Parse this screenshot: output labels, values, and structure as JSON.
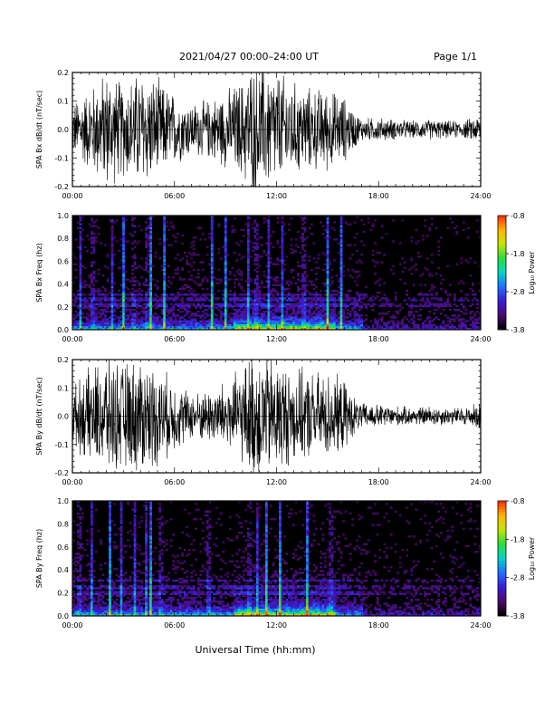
{
  "header": {
    "title": "2021/04/27  00:00–24:00 UT",
    "page": "Page 1/1"
  },
  "footer": {
    "xlabel": "Universal Time (hh:mm)"
  },
  "colors": {
    "trace": "#000000",
    "spectrogram_background": "#000000",
    "colormap": [
      "#000000",
      "#4b0a6e",
      "#3a1bd8",
      "#1f6fff",
      "#00d6c8",
      "#27e03a",
      "#c8e600",
      "#ffb300",
      "#ff2a00"
    ]
  },
  "chart_data": [
    {
      "type": "line",
      "ylabel": "SPA Bx dB/dt (nT/sec)",
      "xlim": [
        0,
        24
      ],
      "ylim": [
        -0.2,
        0.2
      ],
      "x_ticks": [
        "00:00",
        "06:00",
        "12:00",
        "18:00",
        "24:00"
      ],
      "y_ticks": [
        "-0.2",
        "-0.1",
        "0.0",
        "0.1",
        "0.2"
      ],
      "envelope": {
        "hours": [
          0,
          1,
          2,
          3,
          4,
          5,
          6,
          7,
          8,
          9,
          10,
          10.5,
          11,
          12,
          13,
          14,
          15,
          16,
          16.5,
          17,
          18,
          19,
          20,
          21,
          22,
          23,
          24
        ],
        "amplitude": [
          0.09,
          0.14,
          0.2,
          0.16,
          0.2,
          0.17,
          0.12,
          0.09,
          0.1,
          0.13,
          0.17,
          0.22,
          0.22,
          0.2,
          0.16,
          0.14,
          0.14,
          0.11,
          0.07,
          0.04,
          0.04,
          0.035,
          0.03,
          0.035,
          0.03,
          0.03,
          0.05
        ]
      }
    },
    {
      "type": "heatmap",
      "ylabel": "SPA Bx Freq (hz)",
      "colorbar_label": "Log₁₀ Power",
      "colorbar_ticks": [
        "-0.8",
        "-1.8",
        "-2.8",
        "-3.8"
      ],
      "color_range": [
        -3.8,
        -0.8
      ],
      "xlim": [
        0,
        24
      ],
      "ylim": [
        0,
        1
      ],
      "x_ticks": [
        "00:00",
        "06:00",
        "12:00",
        "18:00",
        "24:00"
      ],
      "y_ticks": [
        "0.0",
        "0.2",
        "0.4",
        "0.6",
        "0.8",
        "1.0"
      ],
      "broadband_bursts_hours": [
        0.5,
        1.2,
        2.3,
        3.0,
        3.6,
        4.4,
        4.6,
        5.4,
        8.2,
        9.0,
        10.3,
        10.8,
        11.5,
        12.3,
        13.6,
        15.0,
        15.8
      ],
      "harmonic_bands_hz": [
        0.22,
        0.27,
        0.31
      ]
    },
    {
      "type": "line",
      "ylabel": "SPA By dB/dt (nT/sec)",
      "xlim": [
        0,
        24
      ],
      "ylim": [
        -0.2,
        0.2
      ],
      "x_ticks": [
        "00:00",
        "06:00",
        "12:00",
        "18:00",
        "24:00"
      ],
      "y_ticks": [
        "-0.2",
        "-0.1",
        "0.0",
        "0.1",
        "0.2"
      ],
      "envelope": {
        "hours": [
          0,
          1,
          2,
          3,
          4,
          5,
          6,
          7,
          8,
          9,
          10,
          10.5,
          11,
          12,
          13,
          14,
          15,
          16,
          16.5,
          17,
          18,
          19,
          20,
          21,
          22,
          23,
          24
        ],
        "amplitude": [
          0.1,
          0.16,
          0.2,
          0.18,
          0.2,
          0.17,
          0.12,
          0.08,
          0.09,
          0.12,
          0.16,
          0.22,
          0.22,
          0.2,
          0.16,
          0.15,
          0.15,
          0.12,
          0.07,
          0.045,
          0.04,
          0.035,
          0.03,
          0.035,
          0.03,
          0.03,
          0.05
        ]
      }
    },
    {
      "type": "heatmap",
      "ylabel": "SPA By Freq (hz)",
      "colorbar_label": "Log₁₀ Power",
      "colorbar_ticks": [
        "-0.8",
        "-1.8",
        "-2.8",
        "-3.8"
      ],
      "color_range": [
        -3.8,
        -0.8
      ],
      "xlim": [
        0,
        24
      ],
      "ylim": [
        0,
        1
      ],
      "x_ticks": [
        "00:00",
        "06:00",
        "12:00",
        "18:00",
        "24:00"
      ],
      "y_ticks": [
        "0.0",
        "0.2",
        "0.4",
        "0.6",
        "0.8",
        "1.0"
      ],
      "broadband_bursts_hours": [
        0.4,
        1.1,
        2.2,
        2.9,
        3.7,
        4.3,
        4.6,
        5.2,
        8.0,
        10.4,
        10.9,
        11.4,
        12.2,
        13.8,
        15.2
      ],
      "harmonic_bands_hz": [
        0.2,
        0.25,
        0.31
      ]
    }
  ]
}
